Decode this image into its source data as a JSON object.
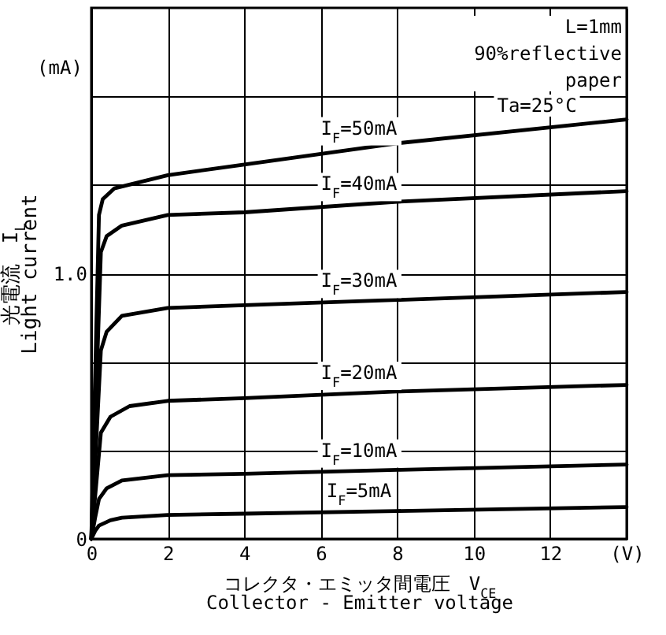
{
  "chart_data": {
    "type": "line",
    "xlabel": "コレクタ・エミッタ間電圧　V$_{CE}$\nCollector - Emitter voltage",
    "ylabel": "光電流　I$_{L}$\nLight current",
    "xlim": [
      0,
      14
    ],
    "xticks": [
      0,
      2,
      4,
      6,
      8,
      10,
      12,
      {
        "value": 14,
        "label": "(V)"
      }
    ],
    "ylim": [
      0,
      2
    ],
    "yticks": [
      0,
      {
        "value": 0.333,
        "label": null
      },
      {
        "value": 0.667,
        "label": null
      },
      {
        "value": 1,
        "label": "1.0"
      },
      {
        "value": 1.333,
        "label": null
      },
      {
        "value": 1.667,
        "label": null
      }
    ],
    "grid": true,
    "marker": "none",
    "line_style": "solid",
    "series": [
      {
        "name": "I$_{F}$=50mA",
        "color": "#000000",
        "x": [
          0,
          0.2,
          0.3,
          0.6,
          2,
          4,
          8,
          14
        ],
        "values": [
          0,
          1.22,
          1.28,
          1.32,
          1.37,
          1.41,
          1.49,
          1.58
        ]
      },
      {
        "name": "I$_{F}$=40mA",
        "color": "#000000",
        "x": [
          0,
          0.25,
          0.4,
          0.8,
          2,
          4,
          8,
          14
        ],
        "values": [
          0,
          1.08,
          1.14,
          1.18,
          1.22,
          1.23,
          1.27,
          1.31
        ]
      },
      {
        "name": "I$_{F}$=30mA",
        "color": "#000000",
        "x": [
          0,
          0.25,
          0.4,
          0.8,
          2,
          4,
          8,
          14
        ],
        "values": [
          0,
          0.71,
          0.78,
          0.84,
          0.87,
          0.88,
          0.9,
          0.93
        ]
      },
      {
        "name": "I$_{F}$=20mA",
        "color": "#000000",
        "x": [
          0,
          0.25,
          0.5,
          1,
          2,
          4,
          8,
          14
        ],
        "values": [
          0,
          0.4,
          0.46,
          0.5,
          0.52,
          0.53,
          0.555,
          0.58
        ]
      },
      {
        "name": "I$_{F}$=10mA",
        "color": "#000000",
        "x": [
          0,
          0.1,
          0.2,
          0.4,
          0.8,
          2,
          4,
          8,
          14
        ],
        "values": [
          0,
          0.08,
          0.15,
          0.19,
          0.22,
          0.24,
          0.245,
          0.26,
          0.28
        ]
      },
      {
        "name": "I$_{F}$=5mA",
        "color": "#000000",
        "x": [
          0,
          0.1,
          0.2,
          0.5,
          0.8,
          2,
          4,
          8,
          14
        ],
        "values": [
          0,
          0.03,
          0.05,
          0.07,
          0.08,
          0.09,
          0.095,
          0.105,
          0.12
        ]
      }
    ],
    "annotations": [
      "(mA)",
      "L=1mm\n90%reflective\npaper",
      "Ta=25°C"
    ]
  }
}
